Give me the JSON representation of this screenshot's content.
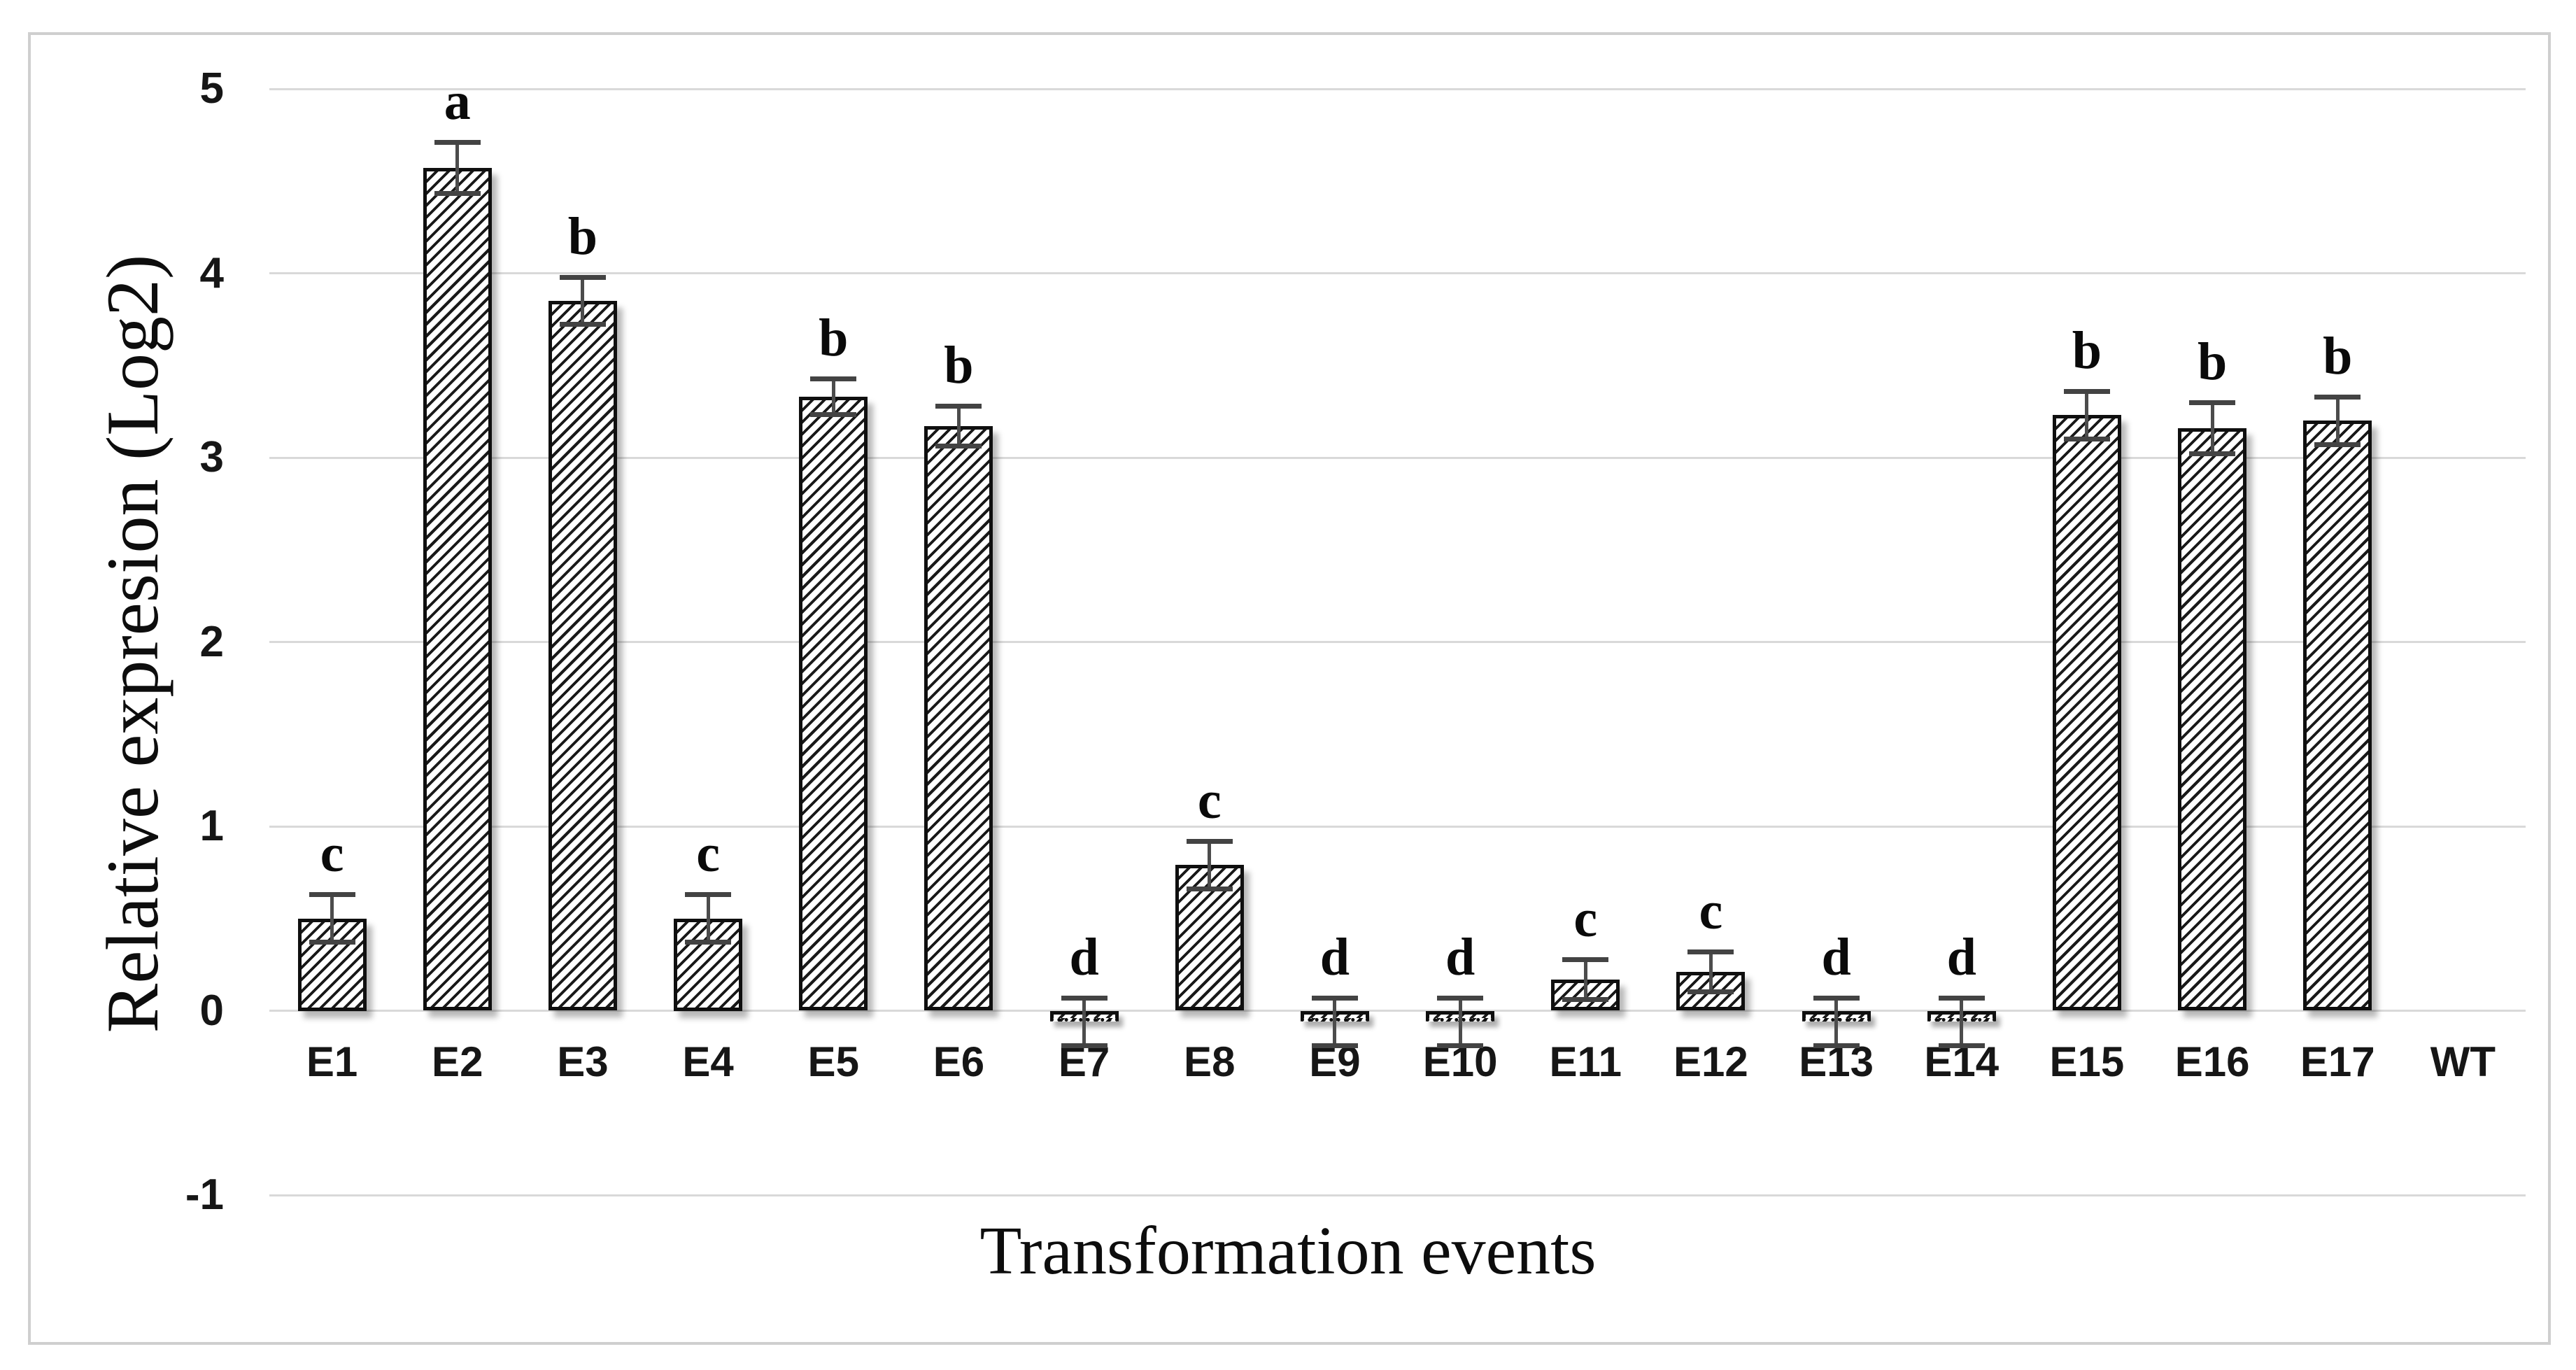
{
  "figure": {
    "background_color": "#ffffff",
    "frame_border_color": "#cfcfcf",
    "gridline_color": "#d9d9d9",
    "bar_border_color": "#0f0f0f",
    "bar_hatch_color": "#191919",
    "error_bar_color": "#4c4c4c",
    "text_color": "#161616"
  },
  "chart_data": {
    "type": "bar",
    "title": "",
    "xlabel": "Transformation events",
    "ylabel": "Relative expresion (Log2)",
    "ylim": [
      -1,
      5
    ],
    "yticks": [
      5,
      4,
      3,
      2,
      1,
      0,
      -1
    ],
    "grid": true,
    "legend": false,
    "bar_fill": "white with black diagonal hatch (/)",
    "categories": [
      "E1",
      "E2",
      "E3",
      "E4",
      "E5",
      "E6",
      "E7",
      "E8",
      "E9",
      "E10",
      "E11",
      "E12",
      "E13",
      "E14",
      "E15",
      "E16",
      "E17",
      "WT"
    ],
    "values": [
      0.5,
      4.57,
      3.85,
      0.5,
      3.33,
      3.17,
      -0.06,
      0.79,
      -0.06,
      -0.06,
      0.17,
      0.21,
      -0.06,
      -0.06,
      3.23,
      3.16,
      3.2,
      0
    ],
    "errors": [
      0.13,
      0.14,
      0.13,
      0.13,
      0.1,
      0.11,
      0.13,
      0.13,
      0.13,
      0.13,
      0.11,
      0.11,
      0.13,
      0.13,
      0.13,
      0.14,
      0.13,
      null
    ],
    "letters": [
      "c",
      "a",
      "b",
      "c",
      "b",
      "b",
      "d",
      "c",
      "d",
      "d",
      "c",
      "c",
      "d",
      "d",
      "b",
      "b",
      "b",
      ""
    ]
  }
}
